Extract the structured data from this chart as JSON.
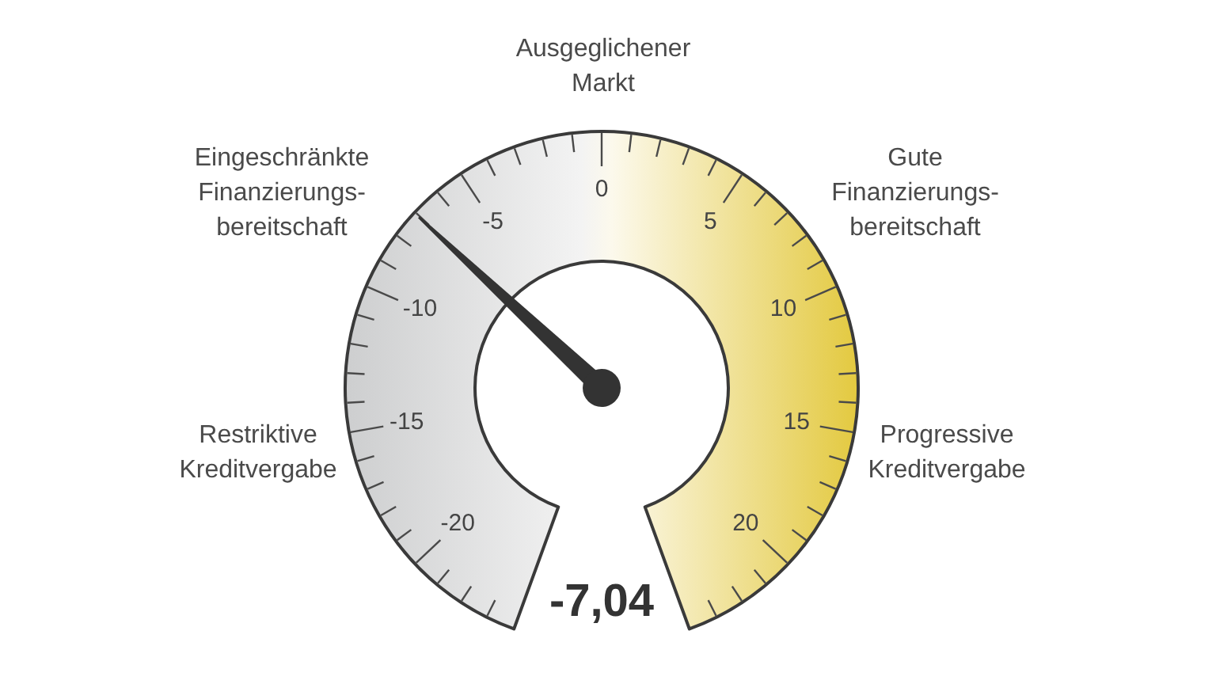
{
  "chart_data": {
    "type": "other",
    "values": [
      -7.04
    ],
    "value_labels": [
      "-7,04"
    ],
    "annotations": [
      "Restriktive\nKreditvergabe",
      "Eingeschränkte\nFinanzierungs-\nbereitschaft",
      "Ausgeglichener\nMarkt",
      "Gute\nFinanzierungs-\nbereitschaft",
      "Progressive\nKreditvergabe",
      "-20",
      "-15",
      "-10",
      "-5",
      "0",
      "5",
      "10",
      "15",
      "20"
    ]
  }
}
